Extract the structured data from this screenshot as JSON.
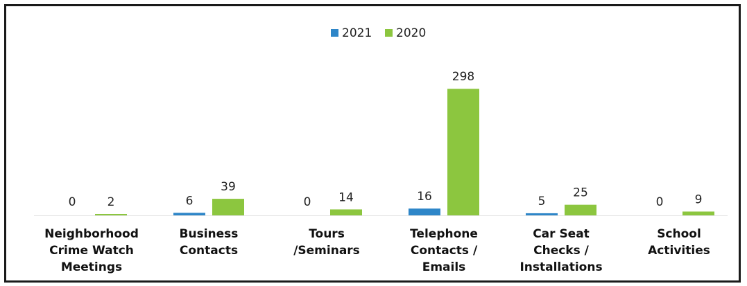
{
  "chart_data": {
    "type": "bar",
    "categories": [
      [
        "Neighborhood",
        "Crime Watch",
        "Meetings"
      ],
      [
        "Business",
        "Contacts"
      ],
      [
        "Tours",
        "/Seminars"
      ],
      [
        "Telephone",
        "Contacts /",
        "Emails"
      ],
      [
        "Car Seat",
        "Checks /",
        "Installations"
      ],
      [
        "School",
        "Activities"
      ]
    ],
    "series": [
      {
        "name": "2021",
        "color": "#2e86c8",
        "values": [
          0,
          6,
          0,
          16,
          5,
          0
        ]
      },
      {
        "name": "2020",
        "color": "#8cc63f",
        "values": [
          2,
          39,
          14,
          298,
          25,
          9
        ]
      }
    ],
    "ylim": [
      0,
      300
    ],
    "grid": false,
    "legend_position": "top-center",
    "data_labels": true
  }
}
